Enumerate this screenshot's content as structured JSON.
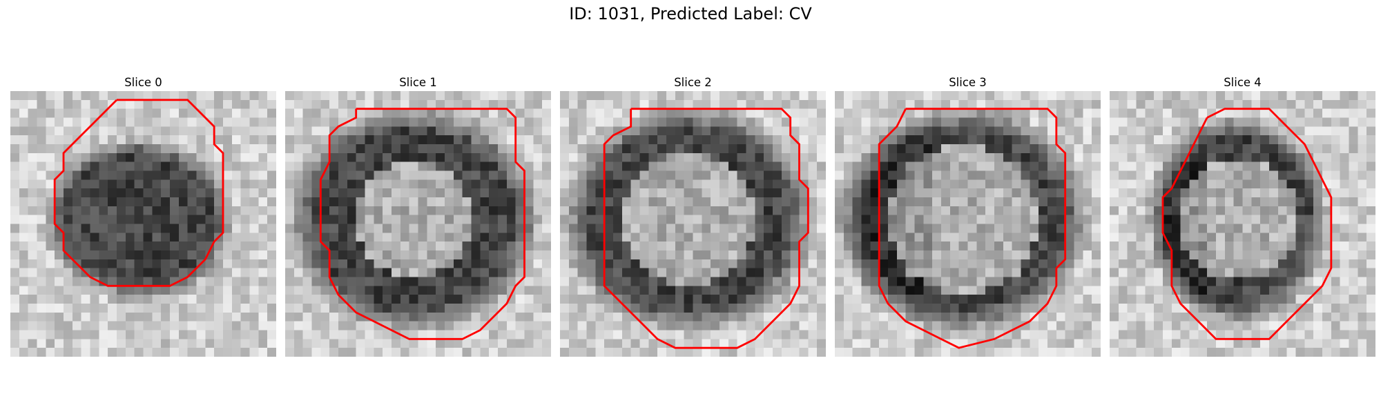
{
  "figure": {
    "title": "ID: 1031, Predicted Label: CV"
  },
  "panels": [
    {
      "title": "Slice 0"
    },
    {
      "title": "Slice 1"
    },
    {
      "title": "Slice 2"
    },
    {
      "title": "Slice 3"
    },
    {
      "title": "Slice 4"
    }
  ],
  "colors": {
    "contour": "#ff0000",
    "background": "#ffffff"
  }
}
